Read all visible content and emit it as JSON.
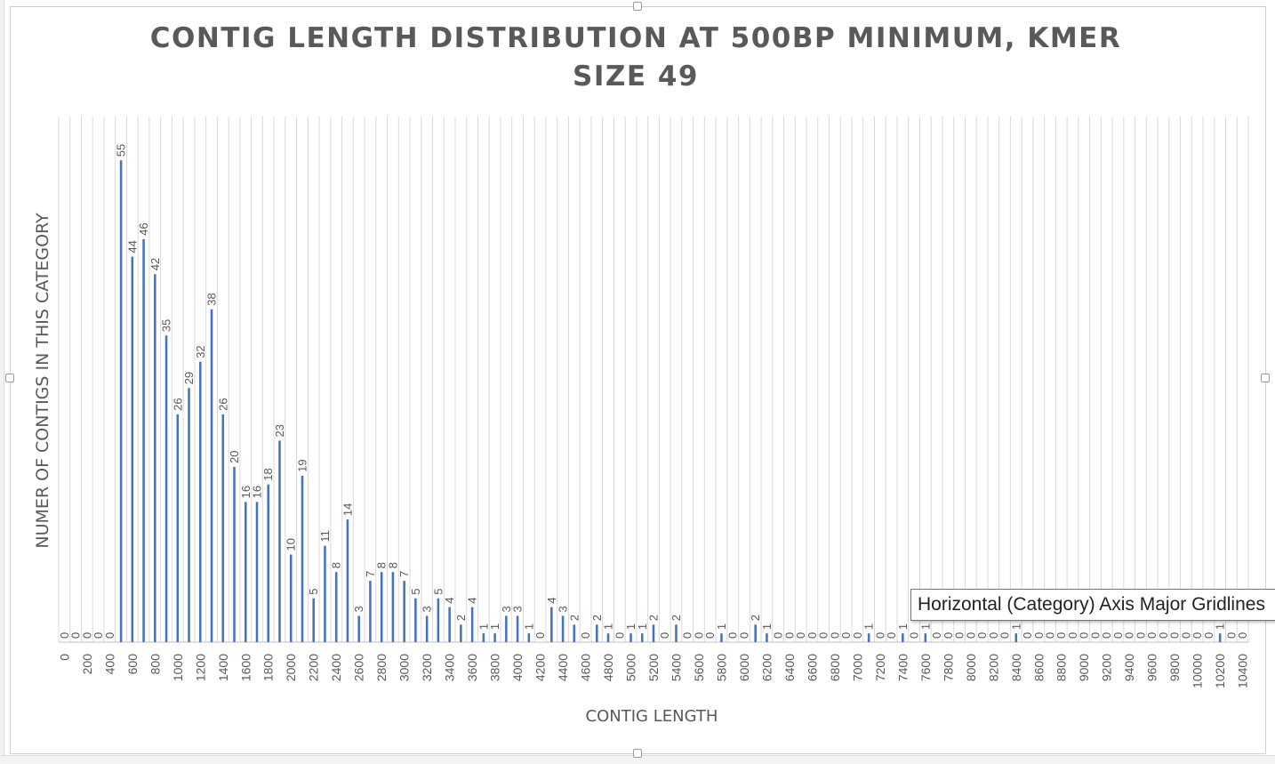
{
  "chart_data": {
    "type": "bar",
    "title": "CONTIG LENGTH DISTRIBUTION AT 500BP MINIMUM, KMER SIZE 49",
    "xlabel": "CONTIG LENGTH",
    "ylabel": "NUMER OF CONTIGS IN THIS CATEGORY",
    "ylim": [
      0,
      60
    ],
    "grid": "vertical",
    "bar_color": "#4472C4",
    "gridline_color": "#D9D9D9",
    "text_color": "#595959",
    "categories": [
      0,
      100,
      200,
      300,
      400,
      500,
      600,
      700,
      800,
      900,
      1000,
      1100,
      1200,
      1300,
      1400,
      1500,
      1600,
      1700,
      1800,
      1900,
      2000,
      2100,
      2200,
      2300,
      2400,
      2500,
      2600,
      2700,
      2800,
      2900,
      3000,
      3100,
      3200,
      3300,
      3400,
      3500,
      3600,
      3700,
      3800,
      3900,
      4000,
      4100,
      4200,
      4300,
      4400,
      4500,
      4600,
      4700,
      4800,
      4900,
      5000,
      5100,
      5200,
      5300,
      5400,
      5500,
      5600,
      5700,
      5800,
      5900,
      6000,
      6100,
      6200,
      6300,
      6400,
      6500,
      6600,
      6700,
      6800,
      6900,
      7000,
      7100,
      7200,
      7300,
      7400,
      7500,
      7600,
      7700,
      7800,
      7900,
      8000,
      8100,
      8200,
      8300,
      8400,
      8500,
      8600,
      8700,
      8800,
      8900,
      9000,
      9100,
      9200,
      9300,
      9400,
      9500,
      9600,
      9700,
      9800,
      9900,
      10000,
      10100,
      10200,
      10300,
      10400
    ],
    "values": [
      0,
      0,
      0,
      0,
      0,
      55,
      44,
      46,
      42,
      35,
      26,
      29,
      32,
      38,
      26,
      20,
      16,
      16,
      18,
      23,
      10,
      19,
      5,
      11,
      8,
      14,
      3,
      7,
      8,
      8,
      7,
      5,
      3,
      5,
      4,
      2,
      4,
      1,
      1,
      3,
      3,
      1,
      0,
      4,
      3,
      2,
      0,
      2,
      1,
      0,
      1,
      1,
      2,
      0,
      2,
      0,
      0,
      0,
      1,
      0,
      0,
      2,
      1,
      0,
      0,
      0,
      0,
      0,
      0,
      0,
      0,
      1,
      0,
      0,
      1,
      0,
      1,
      0,
      0,
      0,
      0,
      0,
      0,
      0,
      1,
      0,
      0,
      0,
      0,
      0,
      0,
      0,
      0,
      0,
      0,
      0,
      0,
      0,
      0,
      0,
      0,
      0,
      1,
      0,
      0
    ],
    "xtick_labels": [
      "0",
      "200",
      "400",
      "600",
      "800",
      "1000",
      "1200",
      "1400",
      "1600",
      "1800",
      "2000",
      "2200",
      "2400",
      "2600",
      "2800",
      "3000",
      "3200",
      "3400",
      "3600",
      "3800",
      "4000",
      "4200",
      "4400",
      "4600",
      "4800",
      "5000",
      "5200",
      "5400",
      "5600",
      "5800",
      "6000",
      "6200",
      "6400",
      "6600",
      "6800",
      "7000",
      "7200",
      "7400",
      "7600",
      "7800",
      "8000",
      "8200",
      "8400",
      "8600",
      "8800",
      "9000",
      "9200",
      "9400",
      "9600",
      "9800",
      "10000",
      "10200",
      "10400"
    ]
  },
  "tooltip": {
    "text": "Horizontal (Category) Axis Major Gridlines"
  }
}
